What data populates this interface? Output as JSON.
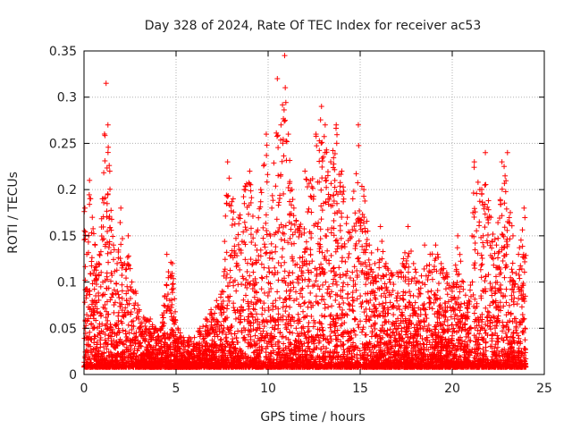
{
  "chart_data": {
    "type": "scatter",
    "title": "Day 328 of 2024, Rate Of TEC Index for receiver ac53",
    "xlabel": "GPS time / hours",
    "ylabel": "ROTI / TECUs",
    "xlim": [
      0,
      25
    ],
    "ylim": [
      0,
      0.35
    ],
    "x_ticks": [
      "0",
      "5",
      "10",
      "15",
      "20",
      "25"
    ],
    "y_ticks": [
      "0",
      "0.05",
      "0.1",
      "0.15",
      "0.2",
      "0.25",
      "0.3",
      "0.35"
    ],
    "grid": true,
    "legend": "none",
    "marker": "+",
    "color": "#ff0000",
    "series": [
      {
        "x": [
          0.05,
          0.15,
          0.3,
          0.45,
          0.6,
          0.8,
          1.0,
          1.2,
          1.3,
          1.4,
          1.6,
          1.8,
          2.0,
          2.2,
          2.4,
          2.6,
          2.8,
          3.0,
          3.3,
          3.6,
          3.9,
          4.2,
          4.5,
          4.8,
          5.1,
          5.4,
          5.7,
          6.0,
          6.3,
          6.6,
          6.9,
          7.2,
          7.5,
          7.8,
          8.1,
          8.4,
          8.7,
          9.0,
          9.3,
          9.6,
          9.9,
          10.2,
          10.5,
          10.7,
          10.9,
          11.1,
          11.4,
          11.7,
          12.0,
          12.3,
          12.6,
          12.9,
          13.1,
          13.4,
          13.7,
          14.0,
          14.3,
          14.6,
          14.9,
          15.2,
          15.5,
          15.8,
          16.1,
          16.4,
          16.7,
          17.0,
          17.3,
          17.6,
          17.9,
          18.2,
          18.5,
          18.8,
          19.1,
          19.4,
          19.7,
          20.0,
          20.3,
          20.6,
          20.9,
          21.2,
          21.5,
          21.8,
          22.1,
          22.4,
          22.7,
          23.0,
          23.3,
          23.6,
          23.9
        ],
        "y": [
          0.18,
          0.13,
          0.21,
          0.17,
          0.14,
          0.12,
          0.19,
          0.315,
          0.27,
          0.22,
          0.14,
          0.12,
          0.18,
          0.12,
          0.15,
          0.1,
          0.09,
          0.07,
          0.06,
          0.06,
          0.05,
          0.05,
          0.13,
          0.12,
          0.05,
          0.04,
          0.04,
          0.04,
          0.05,
          0.06,
          0.07,
          0.08,
          0.09,
          0.23,
          0.19,
          0.17,
          0.2,
          0.22,
          0.14,
          0.2,
          0.26,
          0.18,
          0.32,
          0.27,
          0.345,
          0.26,
          0.18,
          0.16,
          0.22,
          0.21,
          0.26,
          0.29,
          0.27,
          0.23,
          0.27,
          0.22,
          0.17,
          0.19,
          0.27,
          0.2,
          0.14,
          0.12,
          0.16,
          0.12,
          0.11,
          0.11,
          0.12,
          0.16,
          0.12,
          0.1,
          0.14,
          0.13,
          0.14,
          0.12,
          0.11,
          0.09,
          0.15,
          0.1,
          0.08,
          0.23,
          0.2,
          0.24,
          0.17,
          0.14,
          0.23,
          0.24,
          0.15,
          0.13,
          0.18
        ]
      }
    ]
  }
}
